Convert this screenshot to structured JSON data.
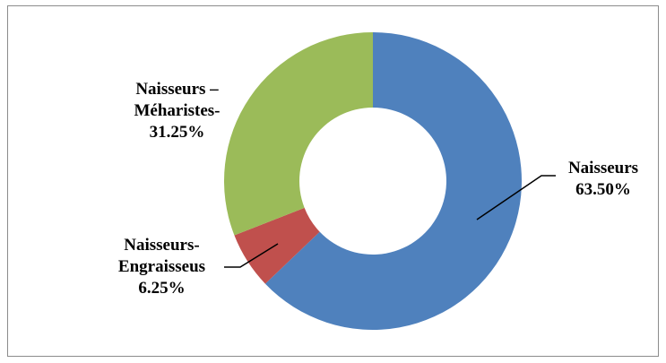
{
  "chart_data": {
    "type": "pie",
    "style": "donut",
    "title": "",
    "slices": [
      {
        "name": "Naisseurs",
        "value": 63.5,
        "label_lines": [
          "Naisseurs",
          "63.50%"
        ],
        "color": "#4F81BD"
      },
      {
        "name": "Naisseurs-Engraisseus",
        "value": 6.25,
        "label_lines": [
          "Naisseurs-",
          "Engraisseus",
          "6.25%"
        ],
        "color": "#C0504D"
      },
      {
        "name": "Naisseurs – Méharistes",
        "value": 31.25,
        "label_lines": [
          "Naisseurs –",
          "Méharistes-",
          "31.25%"
        ],
        "color": "#9BBB59"
      }
    ],
    "legend": "none",
    "grid": false
  }
}
